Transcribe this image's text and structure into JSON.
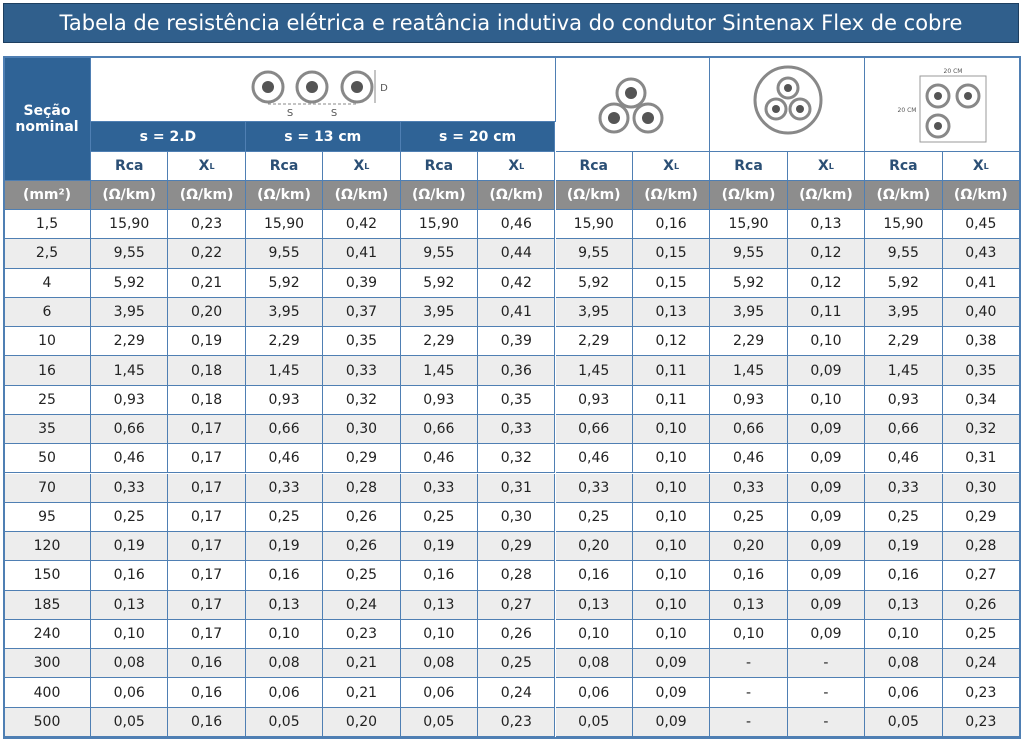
{
  "header": {
    "title": "Tabela de resistência elétrica e reatância indutiva do condutor Sintenax Flex de cobre"
  },
  "table": {
    "corner_header": "Seção nominal",
    "flat_spacings": [
      "s = 2.D",
      "s = 13 cm",
      "s = 20 cm"
    ],
    "icon_labels": {
      "flat_spacing": [
        "S",
        "S"
      ],
      "flat_diameter": "D",
      "square_sides": [
        "20 CM",
        "20 CM"
      ]
    },
    "column_headers": [
      {
        "main": "Rca"
      },
      {
        "main": "X",
        "sub": "L"
      },
      {
        "main": "Rca"
      },
      {
        "main": "X",
        "sub": "L"
      },
      {
        "main": "Rca"
      },
      {
        "main": "X",
        "sub": "L"
      },
      {
        "main": "Rca"
      },
      {
        "main": "X",
        "sub": "L"
      },
      {
        "main": "Rca"
      },
      {
        "main": "X",
        "sub": "L"
      },
      {
        "main": "Rca"
      },
      {
        "main": "X",
        "sub": "L"
      }
    ],
    "units": [
      "(mm²)",
      "(Ω/km)",
      "(Ω/km)",
      "(Ω/km)",
      "(Ω/km)",
      "(Ω/km)",
      "(Ω/km)",
      "(Ω/km)",
      "(Ω/km)",
      "(Ω/km)",
      "(Ω/km)",
      "(Ω/km)",
      "(Ω/km)"
    ],
    "rows": [
      [
        "1,5",
        "15,90",
        "0,23",
        "15,90",
        "0,42",
        "15,90",
        "0,46",
        "15,90",
        "0,16",
        "15,90",
        "0,13",
        "15,90",
        "0,45"
      ],
      [
        "2,5",
        "9,55",
        "0,22",
        "9,55",
        "0,41",
        "9,55",
        "0,44",
        "9,55",
        "0,15",
        "9,55",
        "0,12",
        "9,55",
        "0,43"
      ],
      [
        "4",
        "5,92",
        "0,21",
        "5,92",
        "0,39",
        "5,92",
        "0,42",
        "5,92",
        "0,15",
        "5,92",
        "0,12",
        "5,92",
        "0,41"
      ],
      [
        "6",
        "3,95",
        "0,20",
        "3,95",
        "0,37",
        "3,95",
        "0,41",
        "3,95",
        "0,13",
        "3,95",
        "0,11",
        "3,95",
        "0,40"
      ],
      [
        "10",
        "2,29",
        "0,19",
        "2,29",
        "0,35",
        "2,29",
        "0,39",
        "2,29",
        "0,12",
        "2,29",
        "0,10",
        "2,29",
        "0,38"
      ],
      [
        "16",
        "1,45",
        "0,18",
        "1,45",
        "0,33",
        "1,45",
        "0,36",
        "1,45",
        "0,11",
        "1,45",
        "0,09",
        "1,45",
        "0,35"
      ],
      [
        "25",
        "0,93",
        "0,18",
        "0,93",
        "0,32",
        "0,93",
        "0,35",
        "0,93",
        "0,11",
        "0,93",
        "0,10",
        "0,93",
        "0,34"
      ],
      [
        "35",
        "0,66",
        "0,17",
        "0,66",
        "0,30",
        "0,66",
        "0,33",
        "0,66",
        "0,10",
        "0,66",
        "0,09",
        "0,66",
        "0,32"
      ],
      [
        "50",
        "0,46",
        "0,17",
        "0,46",
        "0,29",
        "0,46",
        "0,32",
        "0,46",
        "0,10",
        "0,46",
        "0,09",
        "0,46",
        "0,31"
      ],
      [
        "70",
        "0,33",
        "0,17",
        "0,33",
        "0,28",
        "0,33",
        "0,31",
        "0,33",
        "0,10",
        "0,33",
        "0,09",
        "0,33",
        "0,30"
      ],
      [
        "95",
        "0,25",
        "0,17",
        "0,25",
        "0,26",
        "0,25",
        "0,30",
        "0,25",
        "0,10",
        "0,25",
        "0,09",
        "0,25",
        "0,29"
      ],
      [
        "120",
        "0,19",
        "0,17",
        "0,19",
        "0,26",
        "0,19",
        "0,29",
        "0,20",
        "0,10",
        "0,20",
        "0,09",
        "0,19",
        "0,28"
      ],
      [
        "150",
        "0,16",
        "0,17",
        "0,16",
        "0,25",
        "0,16",
        "0,28",
        "0,16",
        "0,10",
        "0,16",
        "0,09",
        "0,16",
        "0,27"
      ],
      [
        "185",
        "0,13",
        "0,17",
        "0,13",
        "0,24",
        "0,13",
        "0,27",
        "0,13",
        "0,10",
        "0,13",
        "0,09",
        "0,13",
        "0,26"
      ],
      [
        "240",
        "0,10",
        "0,17",
        "0,10",
        "0,23",
        "0,10",
        "0,26",
        "0,10",
        "0,10",
        "0,10",
        "0,09",
        "0,10",
        "0,25"
      ],
      [
        "300",
        "0,08",
        "0,16",
        "0,08",
        "0,21",
        "0,08",
        "0,25",
        "0,08",
        "0,09",
        "-",
        "-",
        "0,08",
        "0,24"
      ],
      [
        "400",
        "0,06",
        "0,16",
        "0,06",
        "0,21",
        "0,06",
        "0,24",
        "0,06",
        "0,09",
        "-",
        "-",
        "0,06",
        "0,23"
      ],
      [
        "500",
        "0,05",
        "0,16",
        "0,05",
        "0,20",
        "0,05",
        "0,23",
        "0,05",
        "0,09",
        "-",
        "-",
        "0,05",
        "0,23"
      ]
    ]
  }
}
